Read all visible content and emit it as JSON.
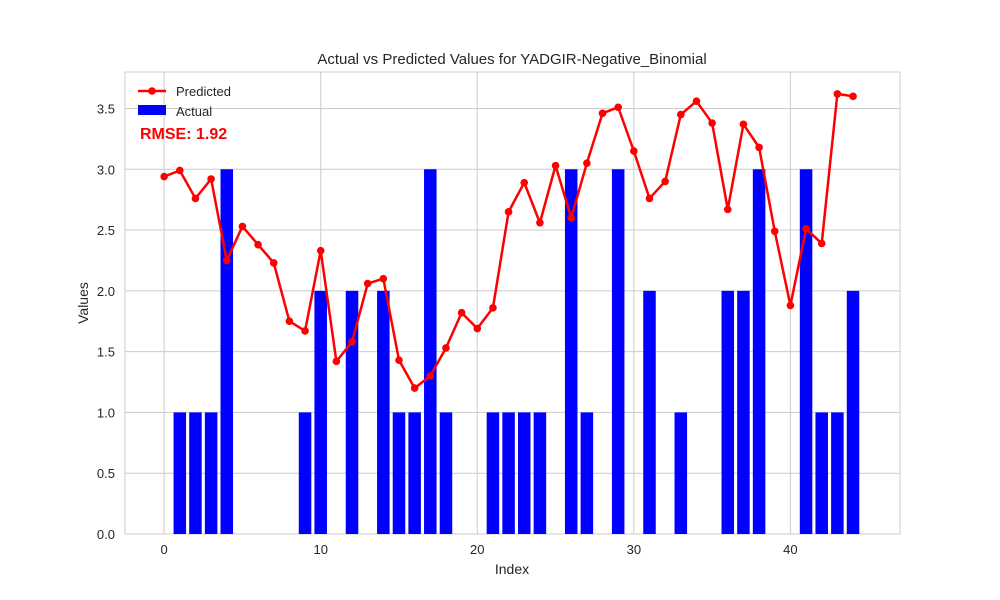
{
  "chart_data": {
    "type": "bar",
    "title": "Actual vs Predicted Values for YADGIR-Negative_Binomial",
    "xlabel": "Index",
    "ylabel": "Values",
    "xlim": [
      -2.5,
      47
    ],
    "ylim": [
      0,
      3.8
    ],
    "xticks": [
      0,
      10,
      20,
      30,
      40
    ],
    "yticks": [
      0.0,
      0.5,
      1.0,
      1.5,
      2.0,
      2.5,
      3.0,
      3.5
    ],
    "ytick_labels": [
      "0.0",
      "0.5",
      "1.0",
      "1.5",
      "2.0",
      "2.5",
      "3.0",
      "3.5"
    ],
    "grid": true,
    "legend_position": "top-left",
    "annotation": "RMSE: 1.92",
    "series": [
      {
        "name": "Predicted",
        "type": "line",
        "color": "#ff0000",
        "x": [
          0,
          1,
          2,
          3,
          4,
          5,
          6,
          7,
          8,
          9,
          10,
          11,
          12,
          13,
          14,
          15,
          16,
          17,
          18,
          19,
          20,
          21,
          22,
          23,
          24,
          25,
          26,
          27,
          28,
          29,
          30,
          31,
          32,
          33,
          34,
          35,
          36,
          37,
          38,
          39,
          40,
          41,
          42,
          43,
          44
        ],
        "values": [
          2.94,
          2.99,
          2.76,
          2.92,
          2.25,
          2.53,
          2.38,
          2.23,
          1.75,
          1.67,
          2.33,
          1.42,
          1.58,
          2.06,
          2.1,
          1.43,
          1.2,
          1.3,
          1.53,
          1.82,
          1.69,
          1.86,
          2.65,
          2.89,
          2.56,
          3.03,
          2.6,
          3.05,
          3.46,
          3.51,
          3.15,
          2.76,
          2.9,
          3.45,
          3.56,
          3.38,
          2.67,
          3.37,
          3.18,
          2.49,
          1.88,
          2.51,
          2.39,
          3.62,
          3.6
        ]
      },
      {
        "name": "Actual",
        "type": "bar",
        "color": "#0000ff",
        "x": [
          0,
          1,
          2,
          3,
          4,
          5,
          6,
          7,
          8,
          9,
          10,
          11,
          12,
          13,
          14,
          15,
          16,
          17,
          18,
          19,
          20,
          21,
          22,
          23,
          24,
          25,
          26,
          27,
          28,
          29,
          30,
          31,
          32,
          33,
          34,
          35,
          36,
          37,
          38,
          39,
          40,
          41,
          42,
          43,
          44
        ],
        "values": [
          0,
          1,
          1,
          1,
          3,
          0,
          0,
          0,
          0,
          1,
          2,
          0,
          2,
          0,
          2,
          1,
          1,
          3,
          1,
          0,
          0,
          1,
          1,
          1,
          1,
          0,
          3,
          1,
          0,
          3,
          0,
          2,
          0,
          1,
          0,
          0,
          2,
          2,
          3,
          0,
          0,
          3,
          1,
          1,
          2
        ]
      }
    ]
  }
}
